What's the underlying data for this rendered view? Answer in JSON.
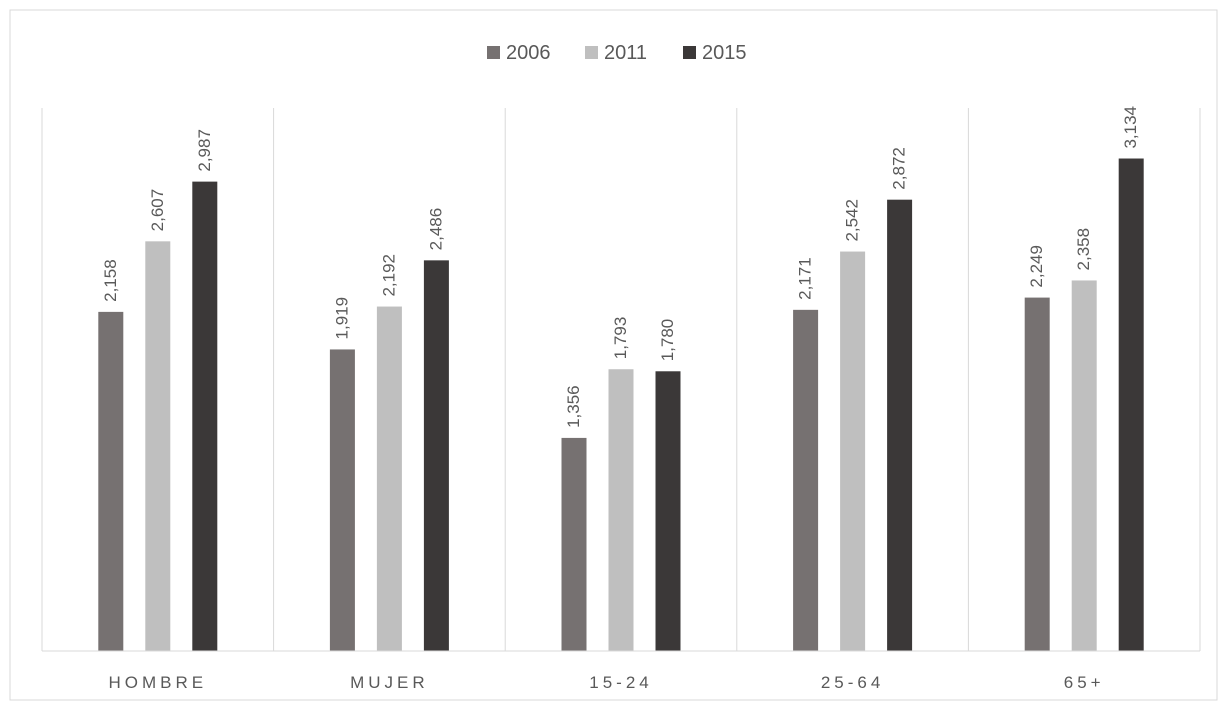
{
  "chart_data": {
    "type": "bar",
    "categories": [
      "HOMBRE",
      "MUJER",
      "15-24",
      "25-64",
      "65+"
    ],
    "series": [
      {
        "name": "2006",
        "values": [
          2158,
          1919,
          1356,
          2171,
          2249
        ],
        "labels": [
          "2,158",
          "1,919",
          "1,356",
          "2,171",
          "2,249"
        ],
        "color": "#767171"
      },
      {
        "name": "2011",
        "values": [
          2607,
          2192,
          1793,
          2542,
          2358
        ],
        "labels": [
          "2,607",
          "2,192",
          "1,793",
          "2,542",
          "2,358"
        ],
        "color": "#bfbfbf"
      },
      {
        "name": "2015",
        "values": [
          2987,
          2486,
          1780,
          2872,
          3134
        ],
        "labels": [
          "2,987",
          "2,486",
          "1,780",
          "2,872",
          "3,134"
        ],
        "color": "#3b3838"
      }
    ],
    "ylim": [
      0,
      3500
    ],
    "legend_position": "top-center",
    "grid": "vertical-category-separators",
    "title": "",
    "xlabel": "",
    "ylabel": ""
  }
}
